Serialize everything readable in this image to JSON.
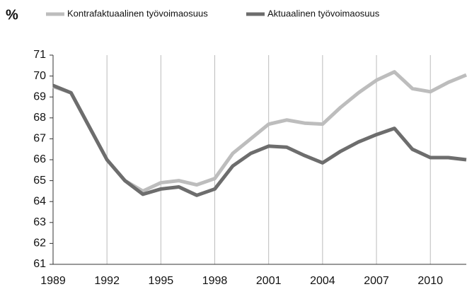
{
  "chart_data": {
    "type": "line",
    "y_label": "%",
    "x": [
      1989,
      1990,
      1991,
      1992,
      1993,
      1994,
      1995,
      1996,
      1997,
      1998,
      1999,
      2000,
      2001,
      2002,
      2003,
      2004,
      2005,
      2006,
      2007,
      2008,
      2009,
      2010,
      2011,
      2012
    ],
    "series": [
      {
        "name": "Kontrafaktuaalinen työvoimaosuus",
        "color": "#bdbdbd",
        "values": [
          69.5,
          69.2,
          67.6,
          66.0,
          65.0,
          64.5,
          64.9,
          65.0,
          64.8,
          65.1,
          66.3,
          67.0,
          67.7,
          67.9,
          67.75,
          67.7,
          68.5,
          69.2,
          69.8,
          70.2,
          69.4,
          69.25,
          69.7,
          70.05
        ]
      },
      {
        "name": "Aktuaalinen työvoimaosuus",
        "color": "#6d6d6d",
        "values": [
          69.55,
          69.2,
          67.6,
          66.0,
          65.0,
          64.35,
          64.6,
          64.7,
          64.3,
          64.6,
          65.7,
          66.3,
          66.65,
          66.6,
          66.2,
          65.85,
          66.4,
          66.85,
          67.2,
          67.5,
          66.5,
          66.1,
          66.1,
          66.0
        ]
      }
    ],
    "xlim": [
      1989,
      2012
    ],
    "xticks": [
      1989,
      1992,
      1995,
      1998,
      2001,
      2004,
      2007,
      2010
    ],
    "ylim": [
      61,
      71
    ],
    "yticks": [
      61,
      62,
      63,
      64,
      65,
      66,
      67,
      68,
      69,
      70,
      71
    ],
    "grid": "x"
  }
}
